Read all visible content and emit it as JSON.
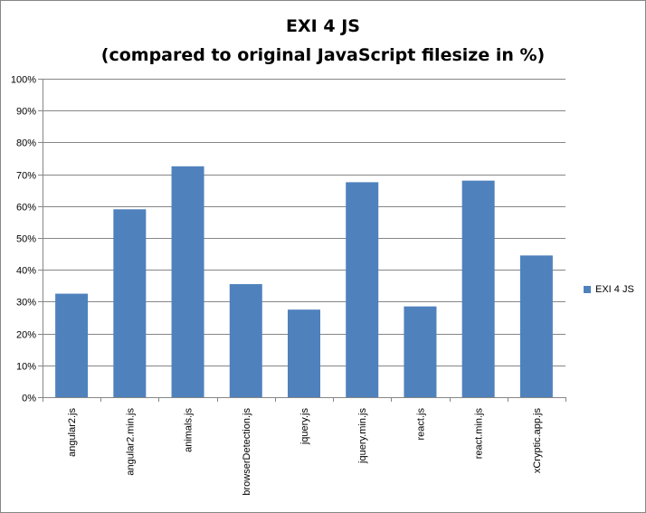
{
  "chart_data": {
    "type": "bar",
    "title": "EXI 4 JS",
    "subtitle": "(compared to original JavaScript filesize in %)",
    "categories": [
      "angular2.js",
      "angular2.min.js",
      "animals.js",
      "browserDetection.js",
      "jquery.js",
      "jquery.min.js",
      "react.js",
      "react.min.js",
      "xCryptic.app.js"
    ],
    "series": [
      {
        "name": "EXI 4 JS",
        "values": [
          32.5,
          59,
          72.5,
          35.5,
          27.5,
          67.5,
          28.5,
          68,
          44.5
        ],
        "color": "#4F81BD"
      }
    ],
    "ylim": [
      0,
      100
    ],
    "yticks": [
      "0%",
      "10%",
      "20%",
      "30%",
      "40%",
      "50%",
      "60%",
      "70%",
      "80%",
      "90%",
      "100%"
    ],
    "xlabel": "",
    "ylabel": "",
    "grid": true,
    "legend": "right"
  }
}
